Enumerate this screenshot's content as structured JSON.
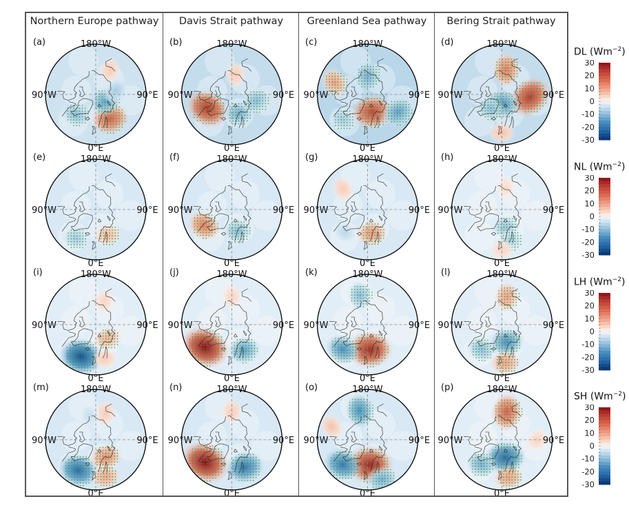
{
  "figure": {
    "column_titles": [
      "Northern Europe pathway",
      "Davis Strait pathway",
      "Greenland Sea pathway",
      "Bering Strait pathway"
    ],
    "axis_labels": {
      "top": "180°W",
      "bottom": "0°E",
      "left": "90°W",
      "right": "90°E"
    },
    "colormap": {
      "low": "#1f5fa0",
      "mid": "#f7f7f7",
      "high": "#b2182b"
    },
    "stipple_color": "#2e9e3a"
  },
  "chart_data": {
    "type": "heatmap",
    "projection": "north-polar-stereographic",
    "units": "W m-2",
    "variables": [
      "DL",
      "NL",
      "LH",
      "SH"
    ],
    "colorbars": [
      {
        "var": "DL",
        "label": "DL (Wm",
        "exp": "−2",
        "close": ")",
        "ticks": [
          "30",
          "20",
          "10",
          "0",
          "-10",
          "-20",
          "-30"
        ],
        "range": [
          -30,
          30
        ]
      },
      {
        "var": "NL",
        "label": "NL (Wm",
        "exp": "−2",
        "close": ")",
        "ticks": [
          "30",
          "20",
          "10",
          "0",
          "-10",
          "-20",
          "-30"
        ],
        "range": [
          -30,
          30
        ]
      },
      {
        "var": "LH",
        "label": "LH (Wm",
        "exp": "−2",
        "close": ")",
        "ticks": [
          "30",
          "20",
          "10",
          "0",
          "-10",
          "-20",
          "-30"
        ],
        "range": [
          -30,
          30
        ]
      },
      {
        "var": "SH",
        "label": "SH (Wm",
        "exp": "−2",
        "close": ")",
        "ticks": [
          "30",
          "20",
          "10",
          "0",
          "-10",
          "-20",
          "-30"
        ],
        "range": [
          -30,
          30
        ]
      }
    ],
    "panels": [
      {
        "id": "(a)",
        "var": "DL",
        "pathway": "Northern Europe pathway",
        "background": -4,
        "anomalies": [
          {
            "lon": 30,
            "lat": 62,
            "value": 18,
            "stippled": true
          },
          {
            "lon": 55,
            "lat": 78,
            "value": -14,
            "stippled": true
          },
          {
            "lon": -45,
            "lat": 62,
            "value": -10,
            "stippled": true
          },
          {
            "lon": 150,
            "lat": 62,
            "value": 5,
            "stippled": false
          },
          {
            "lon": 100,
            "lat": 70,
            "value": -8,
            "stippled": false
          }
        ]
      },
      {
        "id": "(b)",
        "var": "DL",
        "pathway": "Davis Strait pathway",
        "background": -5,
        "anomalies": [
          {
            "lon": -60,
            "lat": 62,
            "value": 24,
            "stippled": true
          },
          {
            "lon": 20,
            "lat": 70,
            "value": -12,
            "stippled": true
          },
          {
            "lon": 75,
            "lat": 65,
            "value": -10,
            "stippled": true
          },
          {
            "lon": 170,
            "lat": 70,
            "value": 5,
            "stippled": false
          }
        ]
      },
      {
        "id": "(c)",
        "var": "DL",
        "pathway": "Greenland Sea pathway",
        "background": -6,
        "anomalies": [
          {
            "lon": 15,
            "lat": 72,
            "value": 22,
            "stippled": true
          },
          {
            "lon": 60,
            "lat": 55,
            "value": -14,
            "stippled": true
          },
          {
            "lon": 180,
            "lat": 72,
            "value": -12,
            "stippled": true
          },
          {
            "lon": -110,
            "lat": 55,
            "value": 10,
            "stippled": true
          },
          {
            "lon": -45,
            "lat": 55,
            "value": -8,
            "stippled": true
          }
        ]
      },
      {
        "id": "(d)",
        "var": "DL",
        "pathway": "Bering Strait pathway",
        "background": -5,
        "anomalies": [
          {
            "lon": 85,
            "lat": 62,
            "value": 24,
            "stippled": true
          },
          {
            "lon": 170,
            "lat": 65,
            "value": 14,
            "stippled": true
          },
          {
            "lon": 0,
            "lat": 80,
            "value": -16,
            "stippled": true
          },
          {
            "lon": -40,
            "lat": 72,
            "value": -10,
            "stippled": true
          },
          {
            "lon": 0,
            "lat": 52,
            "value": 6,
            "stippled": false
          }
        ]
      },
      {
        "id": "(e)",
        "var": "NL",
        "pathway": "Northern Europe pathway",
        "background": -3,
        "anomalies": [
          {
            "lon": 25,
            "lat": 62,
            "value": 7,
            "stippled": true
          },
          {
            "lon": -35,
            "lat": 55,
            "value": -8,
            "stippled": true
          }
        ]
      },
      {
        "id": "(f)",
        "var": "NL",
        "pathway": "Davis Strait pathway",
        "background": -3,
        "anomalies": [
          {
            "lon": -60,
            "lat": 58,
            "value": 14,
            "stippled": true
          },
          {
            "lon": 15,
            "lat": 68,
            "value": -10,
            "stippled": true
          }
        ]
      },
      {
        "id": "(g)",
        "var": "NL",
        "pathway": "Greenland Sea pathway",
        "background": -3,
        "anomalies": [
          {
            "lon": 10,
            "lat": 66,
            "value": 11,
            "stippled": true
          },
          {
            "lon": -45,
            "lat": 58,
            "value": -6,
            "stippled": false
          },
          {
            "lon": -130,
            "lat": 58,
            "value": 5,
            "stippled": false
          }
        ]
      },
      {
        "id": "(h)",
        "var": "NL",
        "pathway": "Bering Strait pathway",
        "background": -2,
        "anomalies": [
          {
            "lon": 12,
            "lat": 72,
            "value": -9,
            "stippled": true
          },
          {
            "lon": 15,
            "lat": 58,
            "value": -7,
            "stippled": true
          },
          {
            "lon": 0,
            "lat": 50,
            "value": 4,
            "stippled": false
          },
          {
            "lon": 170,
            "lat": 68,
            "value": 3,
            "stippled": false
          }
        ]
      },
      {
        "id": "(i)",
        "var": "LH",
        "pathway": "Northern Europe pathway",
        "background": -2,
        "anomalies": [
          {
            "lon": -25,
            "lat": 55,
            "value": -26,
            "stippled": true
          },
          {
            "lon": 40,
            "lat": 72,
            "value": 8,
            "stippled": true
          },
          {
            "lon": 15,
            "lat": 55,
            "value": 5,
            "stippled": false
          },
          {
            "lon": 160,
            "lat": 65,
            "value": 4,
            "stippled": false
          }
        ]
      },
      {
        "id": "(j)",
        "var": "LH",
        "pathway": "Davis Strait pathway",
        "background": -2,
        "anomalies": [
          {
            "lon": -50,
            "lat": 55,
            "value": 30,
            "stippled": true
          },
          {
            "lon": 25,
            "lat": 62,
            "value": -14,
            "stippled": true
          },
          {
            "lon": 180,
            "lat": 62,
            "value": 4,
            "stippled": false
          }
        ]
      },
      {
        "id": "(k)",
        "var": "LH",
        "pathway": "Greenland Sea pathway",
        "background": -2,
        "anomalies": [
          {
            "lon": 5,
            "lat": 65,
            "value": 26,
            "stippled": true
          },
          {
            "lon": -45,
            "lat": 55,
            "value": -16,
            "stippled": true
          },
          {
            "lon": -165,
            "lat": 60,
            "value": -10,
            "stippled": true
          }
        ]
      },
      {
        "id": "(l)",
        "var": "LH",
        "pathway": "Bering Strait pathway",
        "background": -2,
        "anomalies": [
          {
            "lon": 15,
            "lat": 72,
            "value": -16,
            "stippled": true
          },
          {
            "lon": -40,
            "lat": 58,
            "value": -10,
            "stippled": true
          },
          {
            "lon": 170,
            "lat": 62,
            "value": 10,
            "stippled": true
          },
          {
            "lon": 5,
            "lat": 52,
            "value": 10,
            "stippled": true
          }
        ]
      },
      {
        "id": "(m)",
        "var": "SH",
        "pathway": "Northern Europe pathway",
        "background": -3,
        "anomalies": [
          {
            "lon": -30,
            "lat": 55,
            "value": -22,
            "stippled": true
          },
          {
            "lon": 30,
            "lat": 70,
            "value": 12,
            "stippled": true
          },
          {
            "lon": 15,
            "lat": 52,
            "value": 9,
            "stippled": true
          },
          {
            "lon": 160,
            "lat": 62,
            "value": 5,
            "stippled": false
          },
          {
            "lon": -165,
            "lat": 65,
            "value": -5,
            "stippled": false
          }
        ]
      },
      {
        "id": "(n)",
        "var": "SH",
        "pathway": "Davis Strait pathway",
        "background": -3,
        "anomalies": [
          {
            "lon": -50,
            "lat": 55,
            "value": 30,
            "stippled": true
          },
          {
            "lon": 25,
            "lat": 60,
            "value": -20,
            "stippled": true
          },
          {
            "lon": 180,
            "lat": 62,
            "value": 5,
            "stippled": false
          }
        ]
      },
      {
        "id": "(o)",
        "var": "SH",
        "pathway": "Greenland Sea pathway",
        "background": -3,
        "anomalies": [
          {
            "lon": 5,
            "lat": 65,
            "value": 27,
            "stippled": true
          },
          {
            "lon": -45,
            "lat": 55,
            "value": -20,
            "stippled": true
          },
          {
            "lon": -165,
            "lat": 60,
            "value": -16,
            "stippled": true
          },
          {
            "lon": 20,
            "lat": 48,
            "value": -12,
            "stippled": true
          },
          {
            "lon": -110,
            "lat": 52,
            "value": 6,
            "stippled": false
          }
        ]
      },
      {
        "id": "(p)",
        "var": "SH",
        "pathway": "Bering Strait pathway",
        "background": -2,
        "anomalies": [
          {
            "lon": 10,
            "lat": 72,
            "value": -22,
            "stippled": true
          },
          {
            "lon": -40,
            "lat": 58,
            "value": -12,
            "stippled": true
          },
          {
            "lon": 170,
            "lat": 62,
            "value": 18,
            "stippled": true
          },
          {
            "lon": 10,
            "lat": 52,
            "value": 10,
            "stippled": true
          },
          {
            "lon": 90,
            "lat": 55,
            "value": 4,
            "stippled": false
          }
        ]
      }
    ]
  }
}
